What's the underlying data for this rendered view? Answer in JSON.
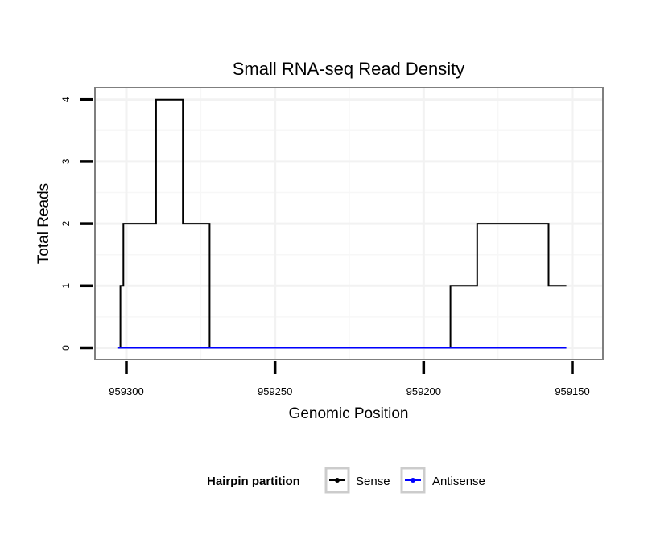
{
  "chart_data": {
    "type": "line",
    "title": "Small RNA-seq Read Density",
    "xlabel": "Genomic Position",
    "ylabel": "Total Reads",
    "x_reversed": true,
    "xlim": [
      959303,
      959147
    ],
    "ylim": [
      0,
      4.2
    ],
    "x_ticks": [
      959300,
      959250,
      959200,
      959150
    ],
    "x_tick_labels": [
      "959300",
      "959250",
      "959200",
      "959150"
    ],
    "y_ticks": [
      0,
      1,
      2,
      3,
      4
    ],
    "y_tick_labels": [
      "0",
      "1",
      "2",
      "3",
      "4"
    ],
    "grid": true,
    "legend": {
      "title": "Hairpin partition",
      "position": "bottom"
    },
    "series": [
      {
        "name": "Sense",
        "color": "#000000",
        "x": [
          959303,
          959302,
          959302,
          959301,
          959301,
          959290,
          959290,
          959281,
          959281,
          959272,
          959272,
          959263,
          959263,
          959191,
          959191,
          959182,
          959182,
          959158,
          959158,
          959152
        ],
        "y": [
          0,
          0,
          1,
          1,
          2,
          2,
          4,
          4,
          2,
          2,
          0,
          0,
          0,
          0,
          1,
          1,
          2,
          2,
          1,
          1
        ]
      },
      {
        "name": "Antisense",
        "color": "#0000ff",
        "x": [
          959303,
          959152
        ],
        "y": [
          0,
          0
        ]
      }
    ]
  }
}
